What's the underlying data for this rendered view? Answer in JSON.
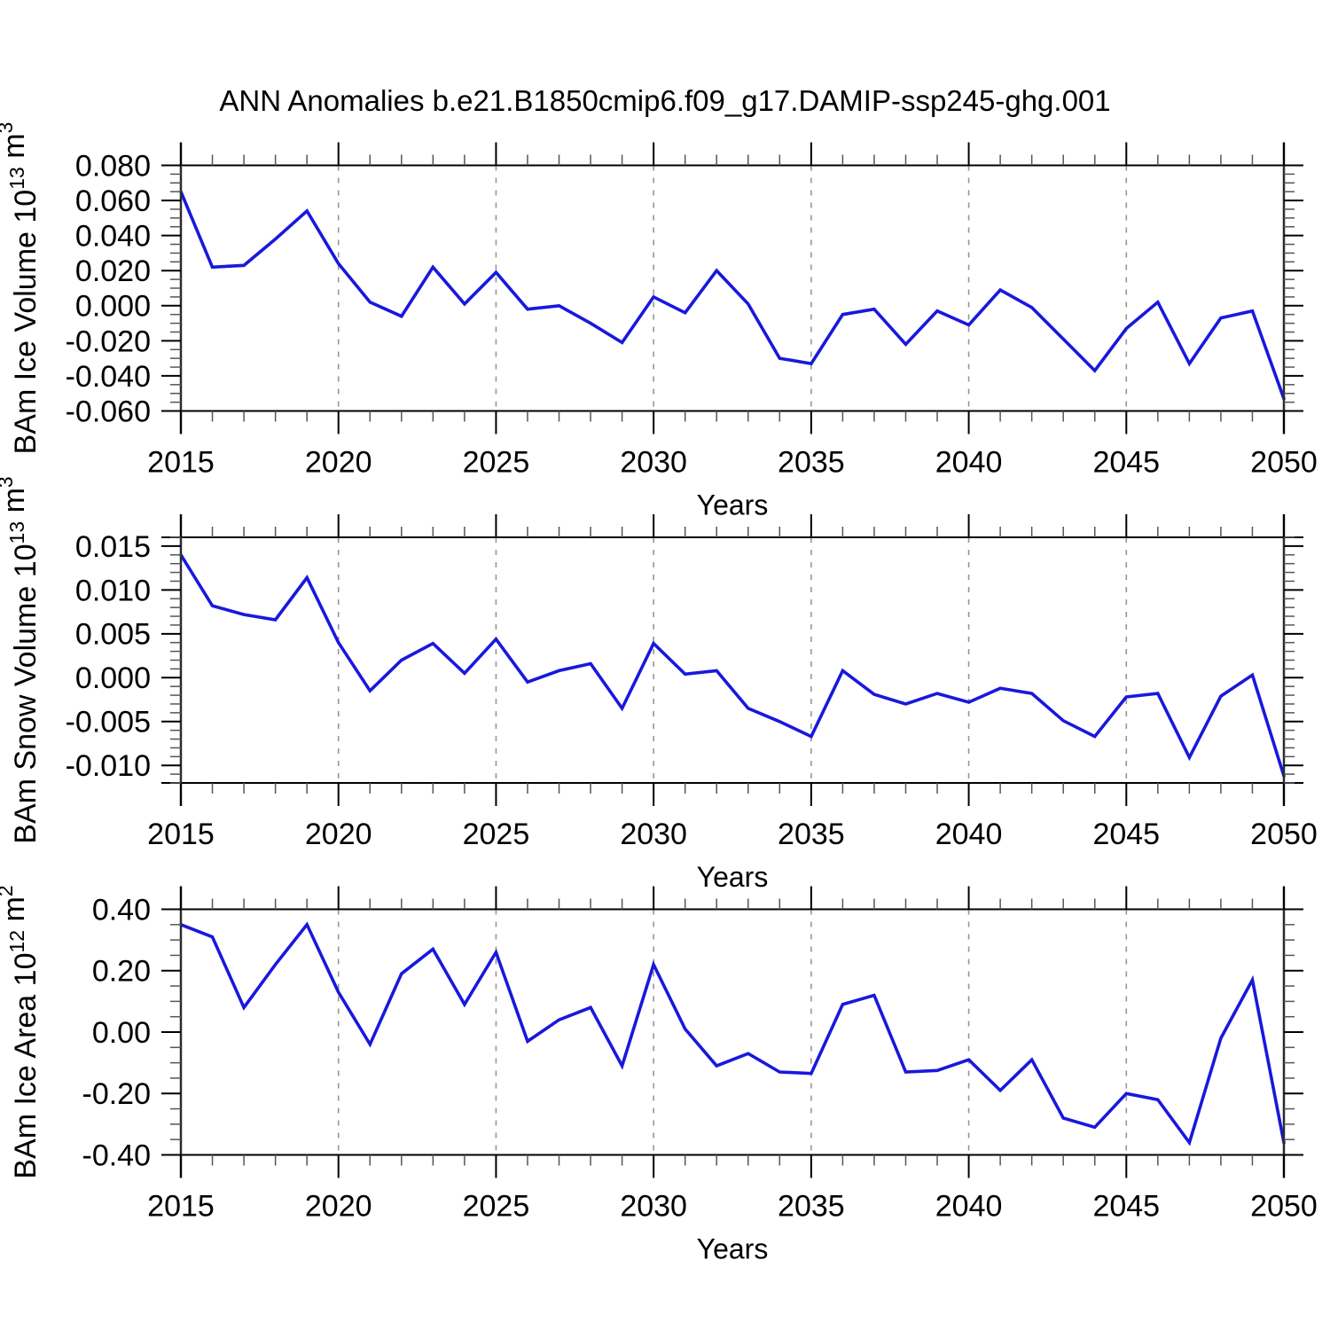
{
  "title": "ANN Anomalies b.e21.B1850cmip6.f09_g17.DAMIP-ssp245-ghg.001",
  "figure": {
    "line_color": "#1818dd",
    "grid_color": "#969696",
    "frame_color": "#000000",
    "spine_color": "#2a2a2a",
    "minor_tick_color": "#555555",
    "background": "#ffffff"
  },
  "years": [
    2015,
    2016,
    2017,
    2018,
    2019,
    2020,
    2021,
    2022,
    2023,
    2024,
    2025,
    2026,
    2027,
    2028,
    2029,
    2030,
    2031,
    2032,
    2033,
    2034,
    2035,
    2036,
    2037,
    2038,
    2039,
    2040,
    2041,
    2042,
    2043,
    2044,
    2045,
    2046,
    2047,
    2048,
    2049,
    2050
  ],
  "chart_data": [
    {
      "type": "line",
      "ylabel_segments": [
        {
          "t": "BAm Ice Volume 10",
          "sup": false
        },
        {
          "t": "13",
          "sup": true
        },
        {
          "t": " m",
          "sup": false
        },
        {
          "t": "3",
          "sup": true
        }
      ],
      "xlabel": "Years",
      "x_major_step": 5,
      "x_minor_step": 1,
      "x_grid_years": [
        2020,
        2025,
        2030,
        2035,
        2040,
        2045
      ],
      "ylim": [
        -0.06,
        0.08
      ],
      "y_major_ticks": [
        0.08,
        0.06,
        0.04,
        0.02,
        0.0,
        -0.02,
        -0.04,
        -0.06
      ],
      "y_minor_step": 0.005,
      "y_decimals": 3,
      "values": [
        0.065,
        0.022,
        0.023,
        0.038,
        0.054,
        0.024,
        0.002,
        -0.006,
        0.022,
        0.001,
        0.019,
        -0.002,
        0.0,
        -0.01,
        -0.021,
        0.005,
        -0.004,
        0.02,
        0.001,
        -0.03,
        -0.033,
        -0.005,
        -0.002,
        -0.022,
        -0.003,
        -0.011,
        0.009,
        -0.001,
        -0.019,
        -0.037,
        -0.013,
        0.002,
        -0.033,
        -0.007,
        -0.003,
        -0.053
      ]
    },
    {
      "type": "line",
      "ylabel_segments": [
        {
          "t": "BAm Snow Volume 10",
          "sup": false
        },
        {
          "t": "13",
          "sup": true
        },
        {
          "t": " m",
          "sup": false
        },
        {
          "t": "3",
          "sup": true
        }
      ],
      "xlabel": "Years",
      "x_major_step": 5,
      "x_minor_step": 1,
      "x_grid_years": [
        2020,
        2025,
        2030,
        2035,
        2040,
        2045
      ],
      "ylim": [
        -0.012,
        0.016
      ],
      "y_major_ticks": [
        0.015,
        0.01,
        0.005,
        0.0,
        -0.005,
        -0.01
      ],
      "y_minor_step": 0.001,
      "y_decimals": 3,
      "values": [
        0.014,
        0.0082,
        0.0072,
        0.0066,
        0.0114,
        0.004,
        -0.0015,
        0.002,
        0.0039,
        0.0005,
        0.0044,
        -0.0005,
        0.0008,
        0.0016,
        -0.0035,
        0.0039,
        0.0004,
        0.0008,
        -0.0035,
        -0.005,
        -0.0067,
        0.0008,
        -0.0019,
        -0.003,
        -0.0018,
        -0.0028,
        -0.0012,
        -0.0018,
        -0.0049,
        -0.0067,
        -0.0022,
        -0.0018,
        -0.0091,
        -0.0021,
        0.0003,
        -0.0112
      ]
    },
    {
      "type": "line",
      "ylabel_segments": [
        {
          "t": "BAm Ice Area 10",
          "sup": false
        },
        {
          "t": "12",
          "sup": true
        },
        {
          "t": " m",
          "sup": false
        },
        {
          "t": "2",
          "sup": true
        }
      ],
      "xlabel": "Years",
      "x_major_step": 5,
      "x_minor_step": 1,
      "x_grid_years": [
        2020,
        2025,
        2030,
        2035,
        2040,
        2045
      ],
      "ylim": [
        -0.4,
        0.4
      ],
      "y_major_ticks": [
        0.4,
        0.2,
        0.0,
        -0.2,
        -0.4
      ],
      "y_minor_step": 0.05,
      "y_decimals": 2,
      "values": [
        0.35,
        0.31,
        0.08,
        0.22,
        0.35,
        0.13,
        -0.04,
        0.19,
        0.27,
        0.09,
        0.26,
        -0.03,
        0.04,
        0.08,
        -0.11,
        0.22,
        0.01,
        -0.11,
        -0.07,
        -0.13,
        -0.135,
        0.09,
        0.12,
        -0.13,
        -0.125,
        -0.09,
        -0.19,
        -0.09,
        -0.28,
        -0.31,
        -0.2,
        -0.22,
        -0.36,
        -0.02,
        0.17,
        -0.36
      ]
    }
  ]
}
